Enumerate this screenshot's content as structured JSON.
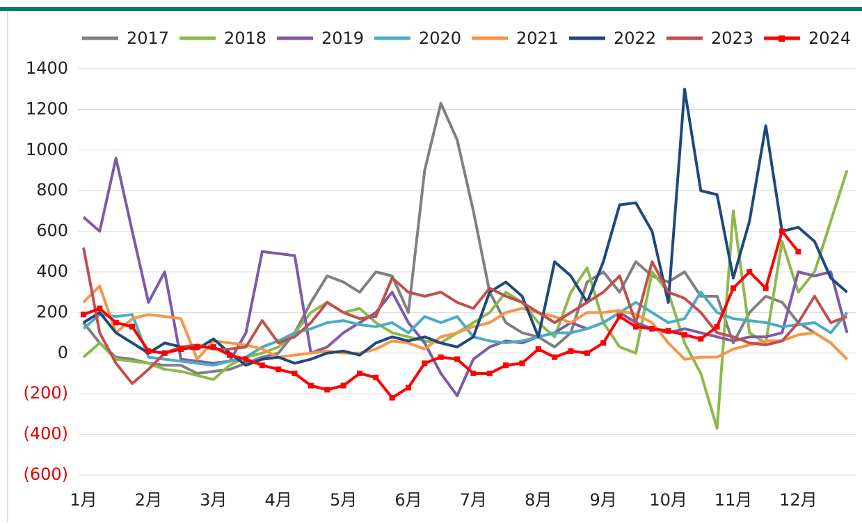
{
  "chart_data": {
    "type": "line",
    "x": [
      "1月",
      null,
      null,
      null,
      "2月",
      null,
      null,
      null,
      "3月",
      null,
      null,
      null,
      "4月",
      null,
      null,
      null,
      "5月",
      null,
      null,
      null,
      "6月",
      null,
      null,
      null,
      "7月",
      null,
      null,
      null,
      "8月",
      null,
      null,
      null,
      "9月",
      null,
      null,
      null,
      "10月",
      null,
      null,
      null,
      "11月",
      null,
      null,
      null,
      "12月",
      null,
      null,
      null
    ],
    "ylim": [
      -600,
      1400
    ],
    "yticks": [
      {
        "value": -600,
        "label": "(600)"
      },
      {
        "value": -400,
        "label": "(400)"
      },
      {
        "value": -200,
        "label": "(200)"
      },
      0,
      200,
      400,
      600,
      800,
      1000,
      1200,
      1400
    ],
    "negative_label_color": "#e00000",
    "grid": true,
    "legend": "top",
    "series": [
      {
        "name": "2017",
        "color": "#808080",
        "values": [
          150,
          50,
          -20,
          -30,
          -50,
          -60,
          -60,
          -100,
          -90,
          -80,
          -50,
          -20,
          0,
          100,
          250,
          380,
          350,
          300,
          400,
          380,
          200,
          900,
          1230,
          1050,
          700,
          300,
          150,
          100,
          80,
          30,
          100,
          350,
          400,
          300,
          450,
          380,
          350,
          400,
          280,
          280,
          50,
          200,
          280,
          250,
          150,
          100,
          50,
          -30
        ]
      },
      {
        "name": "2018",
        "color": "#8db94b",
        "values": [
          -20,
          50,
          -30,
          -40,
          -50,
          -80,
          -90,
          -110,
          -130,
          -60,
          -20,
          0,
          30,
          100,
          200,
          250,
          200,
          220,
          150,
          100,
          80,
          60,
          50,
          100,
          150,
          200,
          300,
          250,
          150,
          80,
          300,
          420,
          150,
          30,
          0,
          400,
          300,
          50,
          -100,
          -370,
          700,
          100,
          50,
          550,
          300,
          400,
          650,
          900
        ]
      },
      {
        "name": "2019",
        "color": "#7f5ba6",
        "values": [
          670,
          600,
          960,
          600,
          250,
          400,
          -30,
          -40,
          -50,
          -40,
          100,
          500,
          490,
          480,
          0,
          30,
          100,
          150,
          200,
          300,
          150,
          50,
          -100,
          -210,
          -30,
          30,
          60,
          50,
          80,
          100,
          150,
          120,
          150,
          200,
          150,
          120,
          100,
          120,
          100,
          80,
          60,
          80,
          80,
          100,
          400,
          380,
          400,
          100
        ]
      },
      {
        "name": "2020",
        "color": "#4bacc6",
        "values": [
          120,
          190,
          180,
          190,
          -20,
          -30,
          -40,
          -50,
          -60,
          -40,
          -20,
          30,
          60,
          100,
          120,
          150,
          160,
          140,
          130,
          150,
          100,
          180,
          150,
          180,
          80,
          60,
          50,
          60,
          80,
          100,
          100,
          120,
          150,
          200,
          250,
          200,
          150,
          170,
          300,
          200,
          170,
          160,
          150,
          130,
          140,
          150,
          100,
          200
        ]
      },
      {
        "name": "2021",
        "color": "#f79646",
        "values": [
          250,
          330,
          100,
          170,
          190,
          180,
          170,
          -30,
          60,
          50,
          40,
          20,
          -20,
          -10,
          0,
          10,
          0,
          0,
          20,
          60,
          50,
          20,
          80,
          100,
          130,
          150,
          200,
          220,
          200,
          180,
          150,
          200,
          200,
          210,
          190,
          150,
          50,
          -30,
          -20,
          -20,
          20,
          40,
          60,
          60,
          90,
          100,
          50,
          -30
        ]
      },
      {
        "name": "2022",
        "color": "#1f497d",
        "values": [
          150,
          200,
          100,
          50,
          0,
          50,
          30,
          20,
          70,
          0,
          -60,
          -30,
          -20,
          -50,
          -30,
          0,
          10,
          -10,
          50,
          80,
          60,
          80,
          50,
          30,
          80,
          300,
          350,
          280,
          80,
          450,
          380,
          250,
          450,
          730,
          740,
          600,
          250,
          1300,
          800,
          780,
          370,
          650,
          1120,
          600,
          620,
          550,
          370,
          300
        ]
      },
      {
        "name": "2023",
        "color": "#c0504d",
        "values": [
          520,
          100,
          -50,
          -150,
          -80,
          0,
          30,
          40,
          20,
          20,
          30,
          160,
          50,
          80,
          150,
          250,
          200,
          170,
          180,
          370,
          300,
          280,
          300,
          250,
          220,
          320,
          280,
          250,
          200,
          150,
          200,
          250,
          300,
          380,
          150,
          450,
          300,
          270,
          200,
          100,
          80,
          50,
          40,
          60,
          150,
          280,
          150,
          180
        ]
      },
      {
        "name": "2024",
        "color": "#ff0000",
        "values": [
          190,
          220,
          150,
          130,
          10,
          0,
          20,
          30,
          30,
          -10,
          -30,
          -60,
          -80,
          -100,
          -160,
          -180,
          -160,
          -100,
          -120,
          -220,
          -170,
          -50,
          -20,
          -30,
          -100,
          -100,
          -60,
          -50,
          20,
          -20,
          10,
          0,
          50,
          180,
          130,
          120,
          110,
          90,
          70,
          130,
          320,
          400,
          320,
          600,
          500,
          null,
          null,
          null
        ]
      }
    ]
  }
}
